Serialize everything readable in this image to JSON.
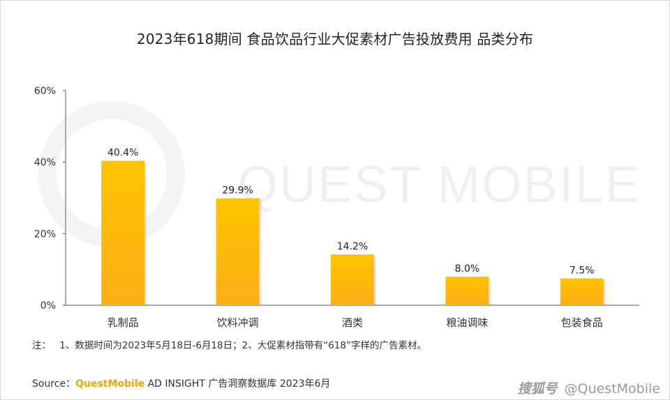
{
  "title": "2023年618期间 食品饮品行业大促素材广告投放费用 品类分布",
  "watermark": "QUEST MOBILE",
  "note_label": "注：",
  "note_text": "1、数据时间为2023年5月18日-6月18日；2、大促素材指带有“618”字样的广告素材。",
  "source_label": "Source：",
  "source_brand": "QuestMobile",
  "source_rest": " AD INSIGHT 广告洞察数据库 2023年6月",
  "bottom_watermark_a": "搜狐号",
  "bottom_watermark_b": "@QuestMobile",
  "colors": {
    "bar_top": "#ffc400",
    "bar_bottom": "#fcaf17",
    "axis": "#555555"
  },
  "chart_data": {
    "type": "bar",
    "title": "2023年618期间 食品饮品行业大促素材广告投放费用 品类分布",
    "categories": [
      "乳制品",
      "饮料冲调",
      "酒类",
      "粮油调味",
      "包装食品"
    ],
    "values": [
      40.4,
      29.9,
      14.2,
      8.0,
      7.5
    ],
    "value_labels": [
      "40.4%",
      "29.9%",
      "14.2%",
      "8.0%",
      "7.5%"
    ],
    "ylim": [
      0,
      60
    ],
    "yticks": [
      0,
      20,
      40,
      60
    ],
    "ytick_labels": [
      "0%",
      "20%",
      "40%",
      "60%"
    ],
    "xlabel": "",
    "ylabel": "",
    "grid": false,
    "legend": "none"
  }
}
